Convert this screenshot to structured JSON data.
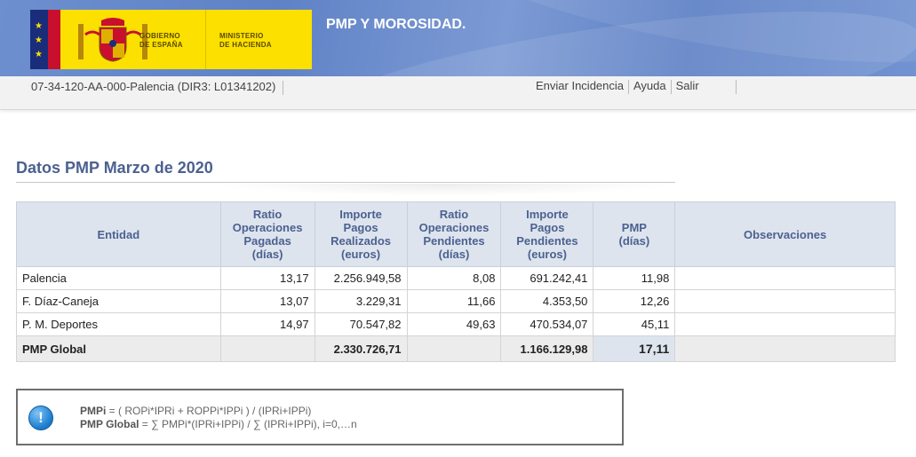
{
  "header": {
    "logo_left_line1": "GOBIERNO",
    "logo_left_line2": "DE ESPAÑA",
    "logo_right_line1": "MINISTERIO",
    "logo_right_line2": "DE HACIENDA",
    "app_title": "PMP Y MOROSIDAD."
  },
  "subbar": {
    "entity": "07-34-120-AA-000-Palencia (DIR3: L01341202)",
    "links": [
      "Enviar Incidencia",
      "Ayuda",
      "Salir"
    ]
  },
  "section": {
    "title": "Datos PMP Marzo de 2020"
  },
  "table": {
    "headers": [
      [
        "Entidad"
      ],
      [
        "Ratio",
        "Operaciones",
        "Pagadas",
        "(días)"
      ],
      [
        "Importe",
        "Pagos",
        "Realizados",
        "(euros)"
      ],
      [
        "Ratio",
        "Operaciones",
        "Pendientes",
        "(días)"
      ],
      [
        "Importe",
        "Pagos",
        "Pendientes",
        "(euros)"
      ],
      [
        "PMP",
        "(días)"
      ],
      [
        "Observaciones"
      ]
    ],
    "rows": [
      [
        "Palencia",
        "13,17",
        "2.256.949,58",
        "8,08",
        "691.242,41",
        "11,98",
        ""
      ],
      [
        "F. Díaz-Caneja",
        "13,07",
        "3.229,31",
        "11,66",
        "4.353,50",
        "12,26",
        ""
      ],
      [
        "P. M. Deportes",
        "14,97",
        "70.547,82",
        "49,63",
        "470.534,07",
        "45,11",
        ""
      ]
    ],
    "global": [
      "PMP Global",
      "",
      "2.330.726,71",
      "",
      "1.166.129,98",
      "17,11",
      ""
    ]
  },
  "info": {
    "icon": "info-icon",
    "line1_label": "PMPi",
    "line1_text": " = ( ROPi*IPRi + ROPPi*IPPi ) / (IPRi+IPPi)",
    "line2_label": "PMP Global",
    "line2_text": " = ∑ PMPi*(IPRi+IPPi) / ∑ (IPRi+IPPi), i=0,…n"
  },
  "colors": {
    "banner": "#6d8fcf",
    "logo_yellow": "#fbe000",
    "title_blue": "#4c6190",
    "header_cell": "#dde4ee"
  }
}
